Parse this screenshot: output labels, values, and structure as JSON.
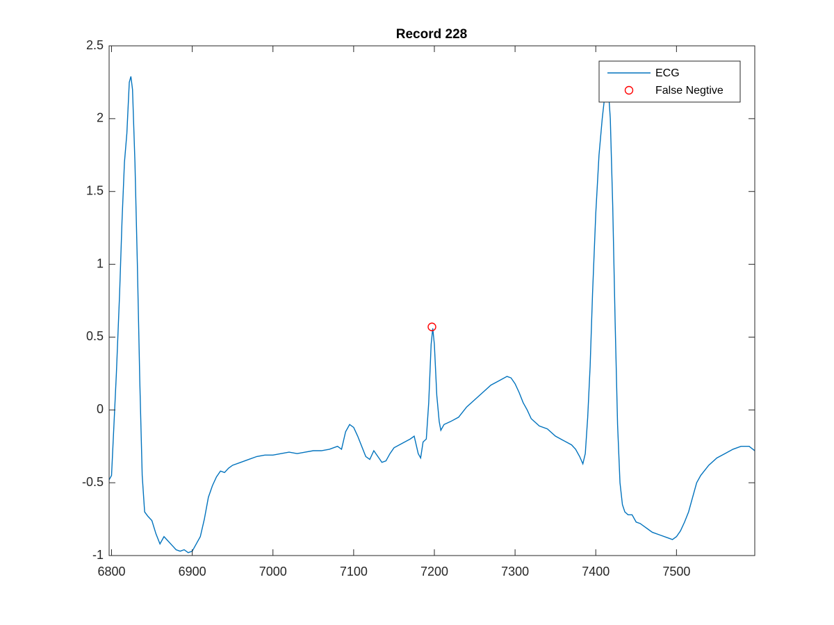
{
  "chart_data": {
    "type": "line",
    "title": "Record 228",
    "xlim": [
      6797,
      7597
    ],
    "ylim": [
      -1,
      2.5
    ],
    "xticks": [
      6800,
      6900,
      7000,
      7100,
      7200,
      7300,
      7400,
      7500
    ],
    "yticks": [
      -1,
      -0.5,
      0,
      0.5,
      1,
      1.5,
      2,
      2.5
    ],
    "grid": false,
    "legend": "northeast",
    "series": [
      {
        "name": "ECG",
        "color": "#0072bd",
        "style": "line",
        "x": [
          6797,
          6800,
          6803,
          6806,
          6810,
          6813,
          6816,
          6819,
          6822,
          6824,
          6826,
          6829,
          6832,
          6835,
          6838,
          6841,
          6845,
          6850,
          6855,
          6860,
          6865,
          6870,
          6875,
          6880,
          6885,
          6890,
          6895,
          6900,
          6905,
          6910,
          6915,
          6920,
          6925,
          6930,
          6935,
          6940,
          6945,
          6950,
          6960,
          6970,
          6980,
          6990,
          7000,
          7010,
          7020,
          7030,
          7040,
          7050,
          7060,
          7070,
          7080,
          7085,
          7090,
          7095,
          7100,
          7105,
          7110,
          7115,
          7120,
          7125,
          7130,
          7135,
          7140,
          7145,
          7150,
          7160,
          7170,
          7175,
          7180,
          7183,
          7186,
          7190,
          7193,
          7196,
          7198,
          7200,
          7203,
          7206,
          7208,
          7212,
          7220,
          7230,
          7240,
          7250,
          7260,
          7270,
          7280,
          7290,
          7295,
          7300,
          7305,
          7310,
          7315,
          7320,
          7330,
          7340,
          7350,
          7360,
          7370,
          7375,
          7380,
          7384,
          7387,
          7390,
          7393,
          7396,
          7400,
          7404,
          7408,
          7412,
          7415,
          7418,
          7421,
          7424,
          7427,
          7430,
          7433,
          7436,
          7440,
          7445,
          7450,
          7455,
          7460,
          7465,
          7470,
          7480,
          7490,
          7495,
          7500,
          7505,
          7510,
          7515,
          7520,
          7525,
          7530,
          7540,
          7550,
          7560,
          7570,
          7580,
          7590,
          7597
        ],
        "values": [
          -0.48,
          -0.45,
          -0.1,
          0.25,
          0.8,
          1.3,
          1.7,
          1.9,
          2.25,
          2.29,
          2.2,
          1.7,
          1.0,
          0.2,
          -0.45,
          -0.7,
          -0.73,
          -0.76,
          -0.85,
          -0.92,
          -0.87,
          -0.9,
          -0.93,
          -0.96,
          -0.97,
          -0.96,
          -0.98,
          -0.97,
          -0.92,
          -0.87,
          -0.75,
          -0.6,
          -0.52,
          -0.46,
          -0.42,
          -0.43,
          -0.4,
          -0.38,
          -0.36,
          -0.34,
          -0.32,
          -0.31,
          -0.31,
          -0.3,
          -0.29,
          -0.3,
          -0.29,
          -0.28,
          -0.28,
          -0.27,
          -0.25,
          -0.27,
          -0.15,
          -0.1,
          -0.12,
          -0.18,
          -0.25,
          -0.32,
          -0.34,
          -0.28,
          -0.32,
          -0.36,
          -0.35,
          -0.3,
          -0.26,
          -0.23,
          -0.2,
          -0.18,
          -0.3,
          -0.33,
          -0.22,
          -0.2,
          0.05,
          0.45,
          0.56,
          0.45,
          0.1,
          -0.08,
          -0.14,
          -0.1,
          -0.08,
          -0.05,
          0.02,
          0.07,
          0.12,
          0.17,
          0.2,
          0.23,
          0.22,
          0.18,
          0.12,
          0.05,
          0.0,
          -0.06,
          -0.11,
          -0.13,
          -0.18,
          -0.21,
          -0.24,
          -0.27,
          -0.32,
          -0.37,
          -0.3,
          -0.05,
          0.3,
          0.8,
          1.35,
          1.75,
          2.0,
          2.2,
          2.25,
          2.0,
          1.4,
          0.6,
          -0.1,
          -0.5,
          -0.65,
          -0.7,
          -0.72,
          -0.72,
          -0.77,
          -0.78,
          -0.8,
          -0.82,
          -0.84,
          -0.86,
          -0.88,
          -0.89,
          -0.87,
          -0.83,
          -0.77,
          -0.7,
          -0.6,
          -0.5,
          -0.45,
          -0.38,
          -0.33,
          -0.3,
          -0.27,
          -0.25,
          -0.25,
          -0.28
        ]
      },
      {
        "name": "False Negtive",
        "color": "#ff0000",
        "style": "marker",
        "x": [
          7197
        ],
        "values": [
          0.57
        ]
      }
    ]
  }
}
